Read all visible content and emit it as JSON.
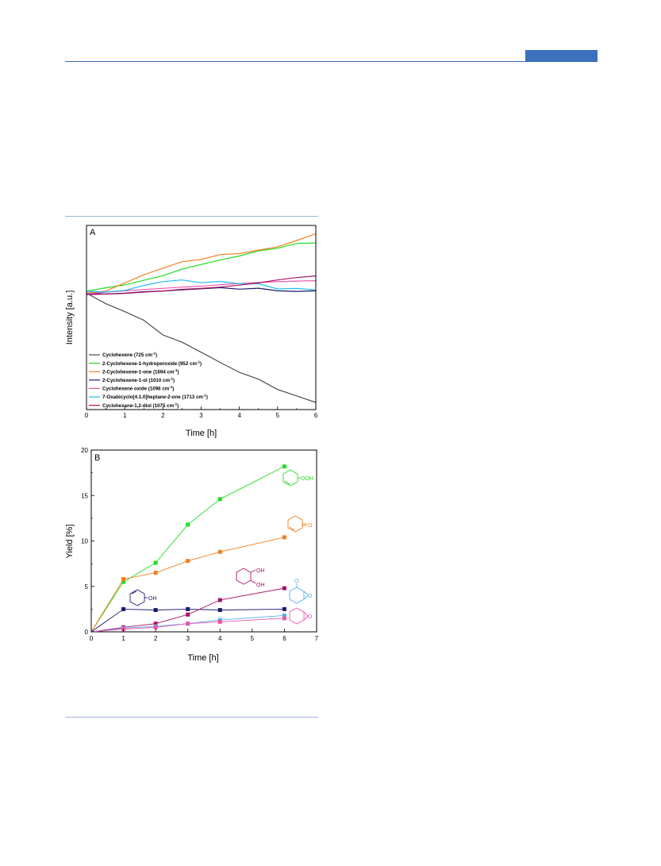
{
  "chart_data": [
    {
      "type": "line",
      "panel_label": "A",
      "xlabel": "Time [h]",
      "ylabel": "Intensity [a.u.]",
      "xlim": [
        0,
        6
      ],
      "ylim": [
        0,
        1
      ],
      "x_ticks": [
        0,
        1,
        2,
        3,
        4,
        5,
        6
      ],
      "y_ticks_shown": false,
      "grid": false,
      "legend_position": "bottom-left",
      "series": [
        {
          "name": "Cyclohexene (725 cm",
          "sup": "-1",
          "close": ")",
          "color": "#4d4d4d",
          "x": [
            0,
            0.5,
            1,
            1.5,
            2,
            2.5,
            3,
            3.5,
            4,
            4.5,
            5,
            5.5,
            6
          ],
          "y": [
            0.632,
            0.576,
            0.532,
            0.485,
            0.405,
            0.366,
            0.311,
            0.256,
            0.202,
            0.165,
            0.109,
            0.074,
            0.039
          ]
        },
        {
          "name": "2-Cyclohexene-1-hydroperoxide (952 cm",
          "sup": "-1",
          "close": ")",
          "color": "#22dd22",
          "x": [
            0,
            0.5,
            1,
            1.5,
            2,
            2.5,
            3,
            3.5,
            4,
            4.5,
            5,
            5.5,
            6
          ],
          "y": [
            0.643,
            0.661,
            0.677,
            0.702,
            0.727,
            0.763,
            0.788,
            0.813,
            0.834,
            0.862,
            0.876,
            0.902,
            0.905
          ]
        },
        {
          "name": "2-Cyclohexene-1-one (1694 cm",
          "sup": "-1",
          "close": ")",
          "color": "#f08020",
          "x": [
            0,
            0.5,
            1,
            1.5,
            2,
            2.5,
            3,
            3.5,
            4,
            4.5,
            5,
            5.5,
            6
          ],
          "y": [
            0.632,
            0.643,
            0.688,
            0.732,
            0.768,
            0.803,
            0.815,
            0.842,
            0.847,
            0.866,
            0.883,
            0.918,
            0.955
          ]
        },
        {
          "name": "2-Cyclohexene-1-ol (1010 cm",
          "sup": "-1",
          "close": ")",
          "color": "#1a1a6e",
          "x": [
            0,
            0.5,
            1,
            1.5,
            2,
            2.5,
            3,
            3.5,
            4,
            4.5,
            5,
            5.5,
            6
          ],
          "y": [
            0.63,
            0.628,
            0.632,
            0.64,
            0.644,
            0.65,
            0.656,
            0.662,
            0.654,
            0.659,
            0.645,
            0.642,
            0.645
          ]
        },
        {
          "name": "Cyclohexene oxide (1096 cm",
          "sup": "-1",
          "close": ")",
          "color": "#ee55aa",
          "x": [
            0,
            0.5,
            1,
            1.5,
            2,
            2.5,
            3,
            3.5,
            4,
            4.5,
            5,
            5.5,
            6
          ],
          "y": [
            0.628,
            0.638,
            0.645,
            0.652,
            0.658,
            0.665,
            0.67,
            0.678,
            0.684,
            0.69,
            0.695,
            0.698,
            0.7
          ]
        },
        {
          "name": "7-Oxabicyclo[4.1.0]heptane-2-one (1713 cm",
          "sup": "-1",
          "close": ")",
          "color": "#22bbee",
          "x": [
            0,
            0.5,
            1,
            1.5,
            2,
            2.5,
            3,
            3.5,
            4,
            4.5,
            5,
            5.5,
            6
          ],
          "y": [
            0.642,
            0.639,
            0.647,
            0.674,
            0.695,
            0.704,
            0.689,
            0.696,
            0.683,
            0.683,
            0.655,
            0.658,
            0.649
          ]
        },
        {
          "name": "Cyclohexane-1,2-diol (1075 cm",
          "sup": "-1",
          "close": ")",
          "color": "#aa1166",
          "x": [
            0,
            0.5,
            1,
            1.5,
            2,
            2.5,
            3,
            3.5,
            4,
            4.5,
            5,
            5.5,
            6
          ],
          "y": [
            0.624,
            0.627,
            0.631,
            0.638,
            0.644,
            0.653,
            0.658,
            0.665,
            0.676,
            0.688,
            0.704,
            0.717,
            0.726
          ]
        }
      ]
    },
    {
      "type": "scatter",
      "panel_label": "B",
      "xlabel": "Time [h]",
      "ylabel": "Yield [%]",
      "xlim": [
        0,
        7
      ],
      "ylim": [
        0,
        20
      ],
      "x_ticks": [
        0,
        1,
        2,
        3,
        4,
        5,
        6,
        7
      ],
      "y_ticks": [
        0,
        5,
        10,
        15,
        20
      ],
      "grid": false,
      "series": [
        {
          "color": "#22dd22",
          "x": [
            0,
            1,
            2,
            3,
            4,
            6
          ],
          "y": [
            0,
            5.5,
            7.6,
            11.8,
            14.6,
            18.2
          ]
        },
        {
          "color": "#f08020",
          "x": [
            0,
            1,
            2,
            3,
            4,
            6
          ],
          "y": [
            0,
            5.8,
            6.5,
            7.8,
            8.8,
            10.4
          ]
        },
        {
          "color": "#1a1a6e",
          "x": [
            0,
            1,
            2,
            3,
            4,
            6
          ],
          "y": [
            0,
            2.5,
            2.4,
            2.5,
            2.4,
            2.5
          ]
        },
        {
          "color": "#aa1166",
          "x": [
            0,
            1,
            2,
            3,
            4,
            6
          ],
          "y": [
            0,
            0.5,
            0.9,
            1.9,
            3.5,
            4.8
          ]
        },
        {
          "color": "#55b3ee",
          "x": [
            0,
            1,
            2,
            3,
            4,
            6
          ],
          "y": [
            0,
            0.4,
            0.6,
            0.9,
            1.3,
            1.8
          ]
        },
        {
          "color": "#ee55aa",
          "x": [
            0,
            1,
            2,
            3,
            4,
            6
          ],
          "y": [
            0,
            0.3,
            0.5,
            0.9,
            1.1,
            1.5
          ]
        }
      ],
      "structure_labels": {
        "hydroperoxide": "OOH",
        "ketone": "O",
        "diol_top": "OH",
        "diol_bottom": "OH",
        "alcohol": "OH",
        "epoxyketone_carbonyl": "O",
        "epoxyketone_epoxide": "O",
        "epoxide": "O"
      }
    }
  ]
}
